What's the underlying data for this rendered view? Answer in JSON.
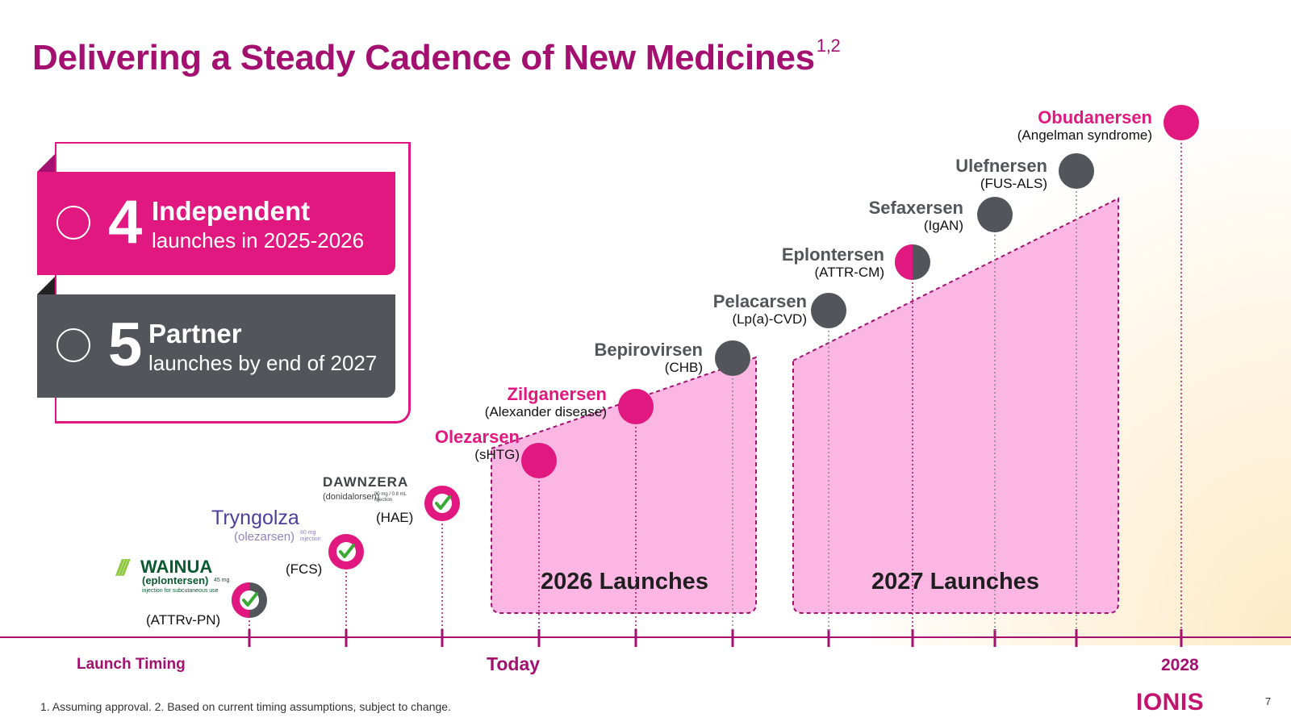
{
  "title": {
    "text": "Delivering a Steady Cadence of New Medicines",
    "superscript": "1,2"
  },
  "summary": {
    "independent": {
      "count": "4",
      "heading": "Independent",
      "subtext": "launches in 2025-2026",
      "color": "#e0187f"
    },
    "partner": {
      "count": "5",
      "heading": "Partner",
      "subtext": "launches by end of 2027",
      "color": "#525559"
    }
  },
  "colors": {
    "brand": "#a4106f",
    "accent": "#e0187f",
    "independent": "#e0187f",
    "partner": "#525559",
    "launch_region": "#fbb6e4"
  },
  "launched": [
    {
      "brand": "WAINUA",
      "generic": "(eplontersen)",
      "dose": "45 mg",
      "note": "injection for subcutaneous use",
      "indication": "(ATTRv-PN)",
      "type": "mixed",
      "approved": true
    },
    {
      "brand": "Tryngolza",
      "generic": "(olezarsen)",
      "dose": "80 mg injection",
      "indication": "(FCS)",
      "type": "independent",
      "approved": true
    },
    {
      "brand": "DAWNZERA",
      "generic": "(donidalorsen)",
      "dose": "80 mg / 0.8 mL injection",
      "indication": "(HAE)",
      "type": "independent",
      "approved": true
    }
  ],
  "pipeline": [
    {
      "name": "Olezarsen",
      "indication": "(sHTG)",
      "type": "independent"
    },
    {
      "name": "Zilganersen",
      "indication": "(Alexander disease)",
      "type": "independent"
    },
    {
      "name": "Bepirovirsen",
      "indication": "(CHB)",
      "type": "partner"
    },
    {
      "name": "Pelacarsen",
      "indication": "(Lp(a)-CVD)",
      "type": "partner"
    },
    {
      "name": "Eplontersen",
      "indication": "(ATTR-CM)",
      "type": "mixed"
    },
    {
      "name": "Sefaxersen",
      "indication": "(IgAN)",
      "type": "partner"
    },
    {
      "name": "Ulefnersen",
      "indication": "(FUS-ALS)",
      "type": "partner"
    },
    {
      "name": "Obudanersen",
      "indication": "(Angelman syndrome)",
      "type": "independent"
    }
  ],
  "regions": {
    "r2026": "2026 Launches",
    "r2027": "2027 Launches"
  },
  "axis": {
    "title": "Launch Timing",
    "today": "Today",
    "end": "2028"
  },
  "footnote": "1. Assuming approval. 2. Based on current timing assumptions, subject to change.",
  "company": "IONIS",
  "page_number": "7"
}
